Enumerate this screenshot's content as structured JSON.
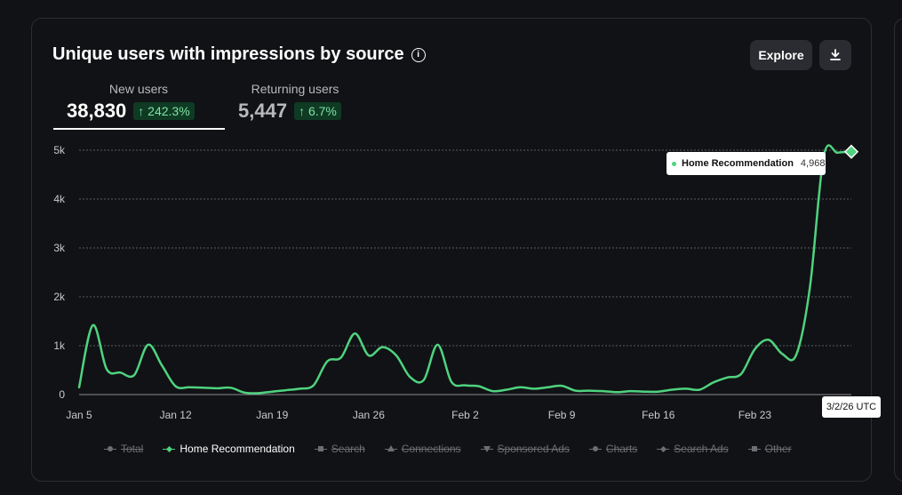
{
  "card": {
    "title": "Unique users with impressions by source",
    "explore_label": "Explore"
  },
  "tabs": [
    {
      "label": "New users",
      "value": "38,830",
      "change": "↑ 242.3%"
    },
    {
      "label": "Returning users",
      "value": "5,447",
      "change": "↑ 6.7%"
    }
  ],
  "tooltip": {
    "series": "Home Recommendation",
    "value": "4,968",
    "date": "3/2/26 UTC"
  },
  "legend": [
    {
      "label": "Total",
      "marker": "circle",
      "active": false
    },
    {
      "label": "Home Recommendation",
      "marker": "diamond",
      "active": true
    },
    {
      "label": "Search",
      "marker": "square",
      "active": false
    },
    {
      "label": "Connections",
      "marker": "tri",
      "active": false
    },
    {
      "label": "Sponsored Ads",
      "marker": "tridown",
      "active": false
    },
    {
      "label": "Charts",
      "marker": "circle",
      "active": false
    },
    {
      "label": "Search Ads",
      "marker": "diamond",
      "active": false
    },
    {
      "label": "Other",
      "marker": "square",
      "active": false
    }
  ],
  "colors": {
    "line": "#4fd37f",
    "grid": "#5a5c62",
    "axis_text": "#c9cacd"
  },
  "chart_data": {
    "type": "line",
    "title": "Unique users with impressions by source",
    "xlabel": "",
    "ylabel": "",
    "ylim": [
      0,
      5000
    ],
    "yticks": [
      0,
      1000,
      2000,
      3000,
      4000,
      5000
    ],
    "ytick_labels": [
      "0",
      "1k",
      "2k",
      "3k",
      "4k",
      "5k"
    ],
    "xticks": [
      "Jan 5",
      "Jan 12",
      "Jan 19",
      "Jan 26",
      "Feb 2",
      "Feb 9",
      "Feb 16",
      "Feb 23"
    ],
    "x_start": "2026-01-05",
    "x_end": "2026-03-02",
    "grid": true,
    "legend_position": "bottom",
    "series": [
      {
        "name": "Home Recommendation",
        "x": [
          "2026-01-05",
          "2026-01-06",
          "2026-01-07",
          "2026-01-08",
          "2026-01-09",
          "2026-01-10",
          "2026-01-11",
          "2026-01-12",
          "2026-01-13",
          "2026-01-14",
          "2026-01-15",
          "2026-01-16",
          "2026-01-17",
          "2026-01-18",
          "2026-01-19",
          "2026-01-20",
          "2026-01-21",
          "2026-01-22",
          "2026-01-23",
          "2026-01-24",
          "2026-01-25",
          "2026-01-26",
          "2026-01-27",
          "2026-01-28",
          "2026-01-29",
          "2026-01-30",
          "2026-01-31",
          "2026-02-01",
          "2026-02-02",
          "2026-02-03",
          "2026-02-04",
          "2026-02-05",
          "2026-02-06",
          "2026-02-07",
          "2026-02-08",
          "2026-02-09",
          "2026-02-10",
          "2026-02-11",
          "2026-02-12",
          "2026-02-13",
          "2026-02-14",
          "2026-02-15",
          "2026-02-16",
          "2026-02-17",
          "2026-02-18",
          "2026-02-19",
          "2026-02-20",
          "2026-02-21",
          "2026-02-22",
          "2026-02-23",
          "2026-02-24",
          "2026-02-25",
          "2026-02-26",
          "2026-02-27",
          "2026-02-28",
          "2026-03-01",
          "2026-03-02"
        ],
        "values": [
          150,
          1420,
          520,
          450,
          400,
          1020,
          600,
          170,
          150,
          140,
          130,
          140,
          40,
          30,
          60,
          90,
          120,
          190,
          680,
          760,
          1250,
          800,
          970,
          800,
          360,
          300,
          1020,
          260,
          190,
          170,
          70,
          100,
          150,
          120,
          150,
          180,
          80,
          80,
          70,
          50,
          70,
          60,
          60,
          100,
          120,
          100,
          250,
          350,
          420,
          930,
          1120,
          830,
          810,
          2200,
          4880,
          4950,
          4968
        ]
      }
    ]
  }
}
